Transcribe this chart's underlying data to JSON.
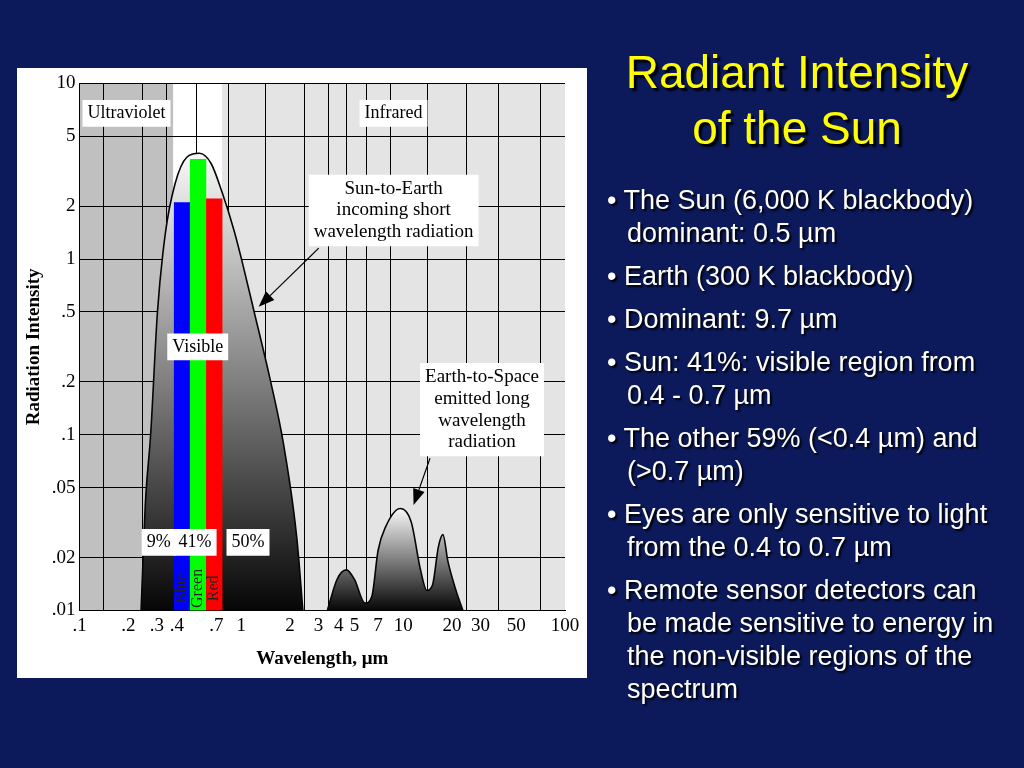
{
  "chart_data": {
    "type": "area",
    "title": "Radiant Intensity of the Sun",
    "xlabel": "Wavelength, μm",
    "ylabel": "Radiation Intensity",
    "log": "xy",
    "grid": true,
    "legend": false,
    "xlim": [
      0.1,
      100
    ],
    "ylim": [
      0.01,
      10
    ],
    "xticks": [
      {
        "value": 0.1,
        "label": ".1"
      },
      {
        "value": 0.2,
        "label": ".2"
      },
      {
        "value": 0.3,
        "label": ".3"
      },
      {
        "value": 0.4,
        "label": ".4"
      },
      {
        "value": 0.7,
        "label": ".7"
      },
      1,
      2,
      3,
      4,
      5,
      7,
      10,
      20,
      30,
      50,
      100
    ],
    "yticks": [
      {
        "value": 0.01,
        "label": ".01"
      },
      {
        "value": 0.02,
        "label": ".02"
      },
      {
        "value": 0.05,
        "label": ".05"
      },
      {
        "value": 0.1,
        "label": ".1"
      },
      {
        "value": 0.2,
        "label": ".2"
      },
      {
        "value": 0.5,
        "label": ".5"
      },
      1,
      2,
      5,
      10
    ],
    "bands": [
      {
        "axis": "x",
        "from": 0.1,
        "to": 0.38,
        "label": "Ultraviolet",
        "color": "#c0c0c0"
      },
      {
        "axis": "x",
        "from": 0.38,
        "to": 0.76,
        "label": "Visible",
        "color": "#ffffff"
      },
      {
        "axis": "x",
        "from": 0.76,
        "to": 100,
        "label": "Infrared",
        "color": "#e4e4e4"
      }
    ],
    "series": [
      {
        "color": "#808080",
        "x": [
          0.24,
          0.256,
          0.275,
          0.303,
          0.339,
          0.39,
          0.46,
          0.55,
          0.65,
          0.76,
          0.9,
          1.01,
          1.2,
          1.5,
          1.82,
          2.2,
          2.4
        ],
        "values": [
          0.01,
          0.043,
          0.1,
          0.5,
          1.4,
          2.7,
          3.8,
          4.0,
          3.5,
          2.4,
          1.46,
          0.97,
          0.5,
          0.21,
          0.089,
          0.026,
          0.01
        ]
      },
      {
        "color": "#808080",
        "x": [
          3.4,
          3.9,
          4.45,
          5.0,
          5.8,
          6.4,
          7.0,
          7.8,
          9.6,
          11.2,
          12.8,
          14.0,
          15.2,
          16.5,
          17.6,
          18.9,
          21.2,
          23.4
        ],
        "values": [
          0.01,
          0.015,
          0.017,
          0.015,
          0.011,
          0.012,
          0.022,
          0.03,
          0.038,
          0.032,
          0.017,
          0.013,
          0.014,
          0.023,
          0.027,
          0.019,
          0.013,
          0.01
        ]
      },
      {
        "type": "bar",
        "x": [
          0.43,
          0.54,
          0.68
        ],
        "values": [
          2.1,
          3.7,
          2.2
        ],
        "colors": [
          "#0000ff",
          "#00ff00",
          "#ff0000"
        ]
      }
    ],
    "annotations": [
      "Blue",
      "Green",
      "Red",
      "9%",
      "41%",
      "50%",
      "Sun-to-Earth\nincoming short\nwavelength radiation",
      "Earth-to-Space\nemitted long\nwavelength\nradiation",
      "• The Sun (6,000 K blackbody) dominant: 0.5 µm",
      "• Earth (300 K blackbody)",
      "• Dominant: 9.7 µm",
      "• Sun: 41%: visible region from 0.4 - 0.7 µm",
      "• The other 59% (<0.4 µm) and (>0.7 µm)",
      "• Eyes are only sensitive to light from the 0.4 to 0.7 µm",
      "• Remote sensor detectors can be made sensitive to energy in the non-visible regions of the spectrum"
    ]
  }
}
